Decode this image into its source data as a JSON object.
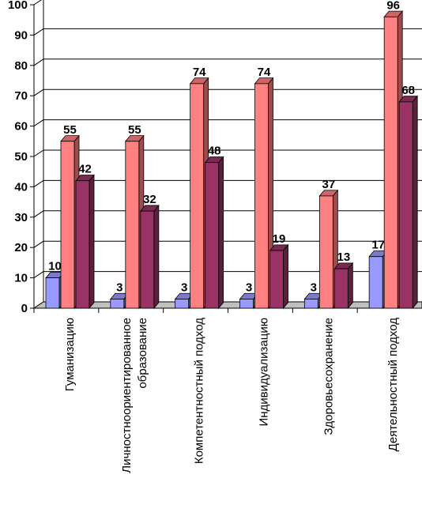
{
  "chart_data": {
    "type": "bar",
    "categories": [
      [
        "Гуманизацию"
      ],
      [
        "Личностноориентированное",
        "образование"
      ],
      [
        "Компетентностный подход"
      ],
      [
        "Индивидуализацию"
      ],
      [
        "Здоровьесохранение"
      ],
      [
        "Деятельностный подход"
      ]
    ],
    "series": [
      {
        "color": "#9999ff",
        "values": [
          10,
          3,
          3,
          3,
          3,
          17
        ]
      },
      {
        "color": "#ff8080",
        "values": [
          55,
          55,
          74,
          74,
          37,
          96
        ]
      },
      {
        "color": "#993366",
        "values": [
          42,
          32,
          48,
          19,
          13,
          68
        ]
      }
    ],
    "ylim": [
      0,
      100
    ],
    "yticks": [
      0,
      10,
      20,
      30,
      40,
      50,
      60,
      70,
      80,
      90,
      100
    ],
    "grid": true,
    "legend": "none"
  }
}
